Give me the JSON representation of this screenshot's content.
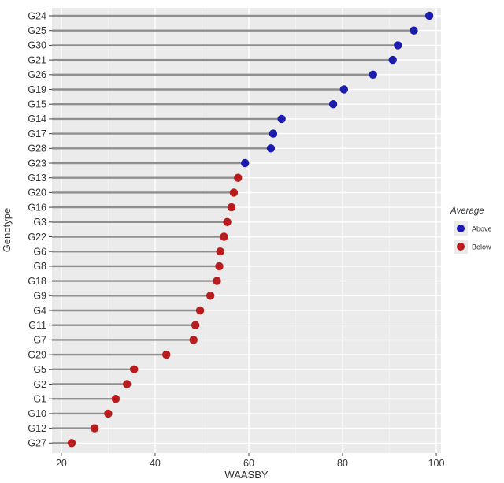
{
  "chart_data": {
    "type": "lollipop",
    "title": "",
    "xlabel": "WAASBY",
    "ylabel": "Genotype",
    "xlim": [
      18,
      101
    ],
    "x_ticks": [
      "20",
      "40",
      "60",
      "80",
      "100"
    ],
    "x_tick_values": [
      20,
      40,
      60,
      80,
      100
    ],
    "grid": true,
    "legend": {
      "title": "Average",
      "placement": "right",
      "entries": [
        {
          "label": "Above",
          "color": "#1b1bb0"
        },
        {
          "label": "Below",
          "color": "#b81c1c"
        }
      ]
    },
    "baseline": 18,
    "points": [
      {
        "genotype": "G24",
        "value": 98.5,
        "group": "Above"
      },
      {
        "genotype": "G25",
        "value": 95.2,
        "group": "Above"
      },
      {
        "genotype": "G30",
        "value": 91.8,
        "group": "Above"
      },
      {
        "genotype": "G21",
        "value": 90.7,
        "group": "Above"
      },
      {
        "genotype": "G26",
        "value": 86.5,
        "group": "Above"
      },
      {
        "genotype": "G19",
        "value": 80.3,
        "group": "Above"
      },
      {
        "genotype": "G15",
        "value": 78.0,
        "group": "Above"
      },
      {
        "genotype": "G14",
        "value": 67.0,
        "group": "Above"
      },
      {
        "genotype": "G17",
        "value": 65.2,
        "group": "Above"
      },
      {
        "genotype": "G28",
        "value": 64.7,
        "group": "Above"
      },
      {
        "genotype": "G23",
        "value": 59.2,
        "group": "Above"
      },
      {
        "genotype": "G13",
        "value": 57.7,
        "group": "Below"
      },
      {
        "genotype": "G20",
        "value": 56.8,
        "group": "Below"
      },
      {
        "genotype": "G16",
        "value": 56.3,
        "group": "Below"
      },
      {
        "genotype": "G3",
        "value": 55.4,
        "group": "Below"
      },
      {
        "genotype": "G22",
        "value": 54.7,
        "group": "Below"
      },
      {
        "genotype": "G6",
        "value": 53.9,
        "group": "Below"
      },
      {
        "genotype": "G8",
        "value": 53.7,
        "group": "Below"
      },
      {
        "genotype": "G18",
        "value": 53.2,
        "group": "Below"
      },
      {
        "genotype": "G9",
        "value": 51.8,
        "group": "Below"
      },
      {
        "genotype": "G4",
        "value": 49.6,
        "group": "Below"
      },
      {
        "genotype": "G11",
        "value": 48.6,
        "group": "Below"
      },
      {
        "genotype": "G7",
        "value": 48.2,
        "group": "Below"
      },
      {
        "genotype": "G29",
        "value": 42.4,
        "group": "Below"
      },
      {
        "genotype": "G5",
        "value": 35.5,
        "group": "Below"
      },
      {
        "genotype": "G2",
        "value": 34.0,
        "group": "Below"
      },
      {
        "genotype": "G1",
        "value": 31.6,
        "group": "Below"
      },
      {
        "genotype": "G10",
        "value": 30.0,
        "group": "Below"
      },
      {
        "genotype": "G12",
        "value": 27.1,
        "group": "Below"
      },
      {
        "genotype": "G27",
        "value": 22.2,
        "group": "Below"
      }
    ]
  }
}
